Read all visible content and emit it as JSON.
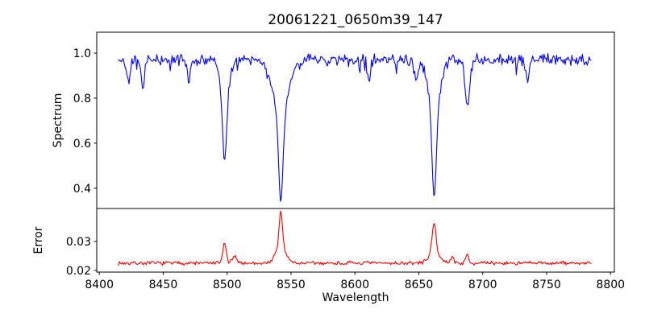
{
  "figure": {
    "background": "#ffffff",
    "text_color": "#000000"
  },
  "chart_data": {
    "type": "line",
    "title": "20061221_0650m39_147",
    "xlabel": "Wavelength",
    "grid": false,
    "legend": "none",
    "xlim": [
      8398,
      8803
    ],
    "x_data_range": [
      8415,
      8785
    ],
    "xticks": [
      {
        "value": 8400,
        "label": "8400"
      },
      {
        "value": 8450,
        "label": "8450"
      },
      {
        "value": 8500,
        "label": "8500"
      },
      {
        "value": 8550,
        "label": "8550"
      },
      {
        "value": 8600,
        "label": "8600"
      },
      {
        "value": 8650,
        "label": "8650"
      },
      {
        "value": 8700,
        "label": "8700"
      },
      {
        "value": 8750,
        "label": "8750"
      },
      {
        "value": 8800,
        "label": "8800"
      }
    ],
    "panels": [
      {
        "name": "spectrum",
        "ylabel": "Spectrum",
        "line_color": "#0000ff",
        "ylim": [
          0.31,
          1.093
        ],
        "yticks": [
          {
            "value": 0.4,
            "label": "0.4"
          },
          {
            "value": 0.6,
            "label": "0.6"
          },
          {
            "value": 0.8,
            "label": "0.8"
          },
          {
            "value": 1.0,
            "label": "1.0"
          }
        ],
        "continuum_level": 0.97,
        "noise_amplitude": 0.03,
        "absorption_lines": [
          {
            "center": 8423,
            "min": 0.87,
            "width": 1.2
          },
          {
            "center": 8434,
            "min": 0.84,
            "width": 1.3
          },
          {
            "center": 8470,
            "min": 0.88,
            "width": 1.2
          },
          {
            "center": 8498,
            "min": 0.52,
            "core_width": 1.5,
            "wing_width": 3.5
          },
          {
            "center": 8542,
            "min": 0.34,
            "core_width": 1.7,
            "wing_width": 6.0
          },
          {
            "center": 8611,
            "min": 0.87,
            "width": 1.2
          },
          {
            "center": 8648,
            "min": 0.88,
            "width": 1.6
          },
          {
            "center": 8662,
            "min": 0.36,
            "core_width": 1.6,
            "wing_width": 4.5
          },
          {
            "center": 8688,
            "min": 0.76,
            "width": 1.8
          },
          {
            "center": 8735,
            "min": 0.87,
            "width": 1.2
          }
        ]
      },
      {
        "name": "error",
        "ylabel": "Error",
        "line_color": "#ff0000",
        "ylim": [
          0.0194,
          0.0414
        ],
        "yticks": [
          {
            "value": 0.02,
            "label": "0.02"
          },
          {
            "value": 0.03,
            "label": "0.03"
          }
        ],
        "baseline_level": 0.0225,
        "noise_amplitude": 0.0008,
        "spikes": [
          {
            "center": 8498,
            "peak": 0.0295,
            "width": 1.3
          },
          {
            "center": 8506,
            "peak": 0.0245,
            "width": 2.0
          },
          {
            "center": 8542,
            "peak": 0.0405,
            "core_width": 1.3,
            "wing_width": 4.0
          },
          {
            "center": 8662,
            "peak": 0.036,
            "core_width": 1.5,
            "wing_width": 4.0
          },
          {
            "center": 8676,
            "peak": 0.0245,
            "width": 1.5
          },
          {
            "center": 8688,
            "peak": 0.0255,
            "width": 1.2
          }
        ]
      }
    ]
  }
}
